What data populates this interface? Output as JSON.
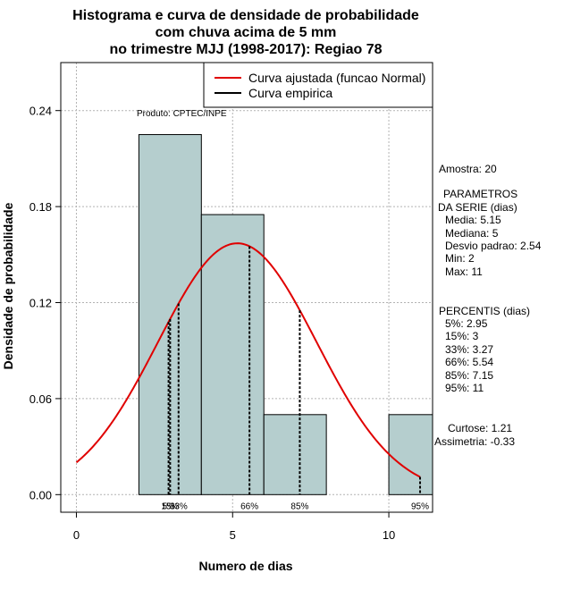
{
  "chart_data": {
    "type": "bar",
    "title_lines": [
      "Histograma e curva de densidade de probabilidade",
      "com chuva acima de 5 mm",
      "no trimestre MJJ (1998-2017): Regiao 78"
    ],
    "xlabel": "Numero de dias",
    "ylabel": "Densidade de probabilidade",
    "xlim": [
      -0.5,
      11.4
    ],
    "ylim": [
      -0.011,
      0.27
    ],
    "xticks": [
      0,
      5,
      10
    ],
    "yticks": [
      0.0,
      0.06,
      0.12,
      0.18,
      0.24
    ],
    "ytick_labels": [
      "0.00",
      "0.06",
      "0.12",
      "0.18",
      "0.24"
    ],
    "grid": true,
    "bars": [
      {
        "x0": 2,
        "x1": 4,
        "density": 0.225
      },
      {
        "x0": 4,
        "x1": 6,
        "density": 0.175
      },
      {
        "x0": 6,
        "x1": 8,
        "density": 0.05
      },
      {
        "x0": 8,
        "x1": 10,
        "density": 0.0
      },
      {
        "x0": 10,
        "x1": 12,
        "density": 0.05
      }
    ],
    "bar_color": "#b5cece",
    "fitted_curve": {
      "name": "Curva ajustada (funcao Normal)",
      "mean": 5.15,
      "sd": 2.54,
      "x_range": [
        0,
        11
      ],
      "color": "#e00000"
    },
    "empirical_curve_name": "Curva empirica",
    "empirical_color": "#000000",
    "percentile_lines": [
      {
        "label": "5%",
        "x": 2.95
      },
      {
        "label": "15%",
        "x": 3
      },
      {
        "label": "33%",
        "x": 3.27
      },
      {
        "label": "66%",
        "x": 5.54
      },
      {
        "label": "85%",
        "x": 7.15
      },
      {
        "label": "95%",
        "x": 11
      }
    ],
    "legend_position": "top-right",
    "product_note": "Produto: CPTEC/INPE",
    "side_info": {
      "sample": "Amostra: 20",
      "params_title_1": "PARAMETROS",
      "params_title_2": "DA SERIE (dias)",
      "params": [
        "Media: 5.15",
        "Mediana: 5",
        "Desvio padrao: 2.54",
        "Min: 2",
        "Max: 11"
      ],
      "percentis_title": "PERCENTIS (dias)",
      "percentis": [
        "5%: 2.95",
        "15%: 3",
        "33%: 3.27",
        "66%: 5.54",
        "85%: 7.15",
        "95%: 11"
      ],
      "curtose": "Curtose: 1.21",
      "assimetria": "Assimetria: -0.33"
    }
  }
}
